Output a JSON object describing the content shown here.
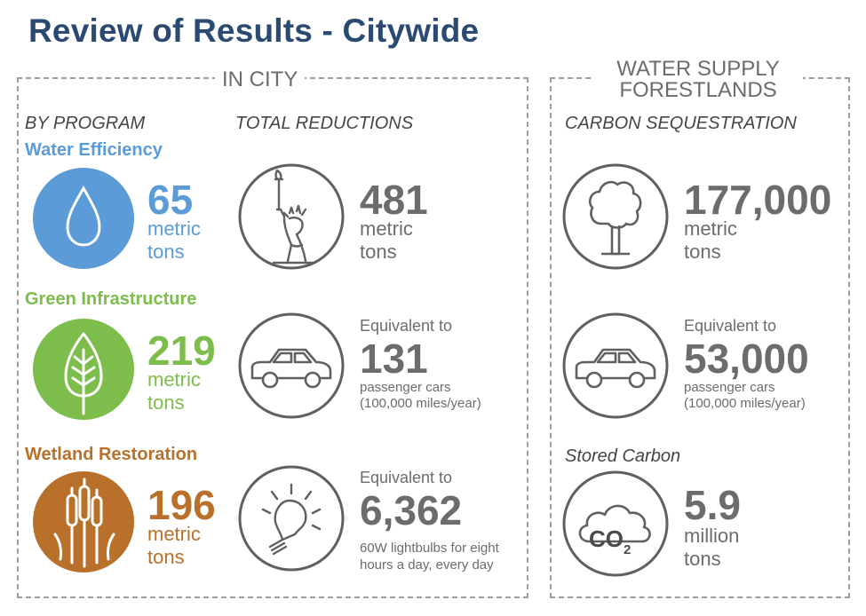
{
  "title": "Review of Results - Citywide",
  "in_city": {
    "label": "IN CITY",
    "by_program_heading": "BY PROGRAM",
    "total_reductions_heading": "TOTAL REDUCTIONS",
    "programs": [
      {
        "name": "Water Efficiency",
        "value": "65",
        "unit1": "metric",
        "unit2": "tons",
        "icon": "water-drop-icon",
        "color": "#5b9bd8"
      },
      {
        "name": "Green Infrastructure",
        "value": "219",
        "unit1": "metric",
        "unit2": "tons",
        "icon": "leaf-icon",
        "color": "#7cbd4b"
      },
      {
        "name": "Wetland Restoration",
        "value": "196",
        "unit1": "metric",
        "unit2": "tons",
        "icon": "cattail-icon",
        "color": "#b9702b"
      }
    ],
    "totals": {
      "reduction": {
        "value": "481",
        "unit1": "metric",
        "unit2": "tons",
        "icon": "statue-of-liberty-icon"
      },
      "cars": {
        "prefix": "Equivalent to",
        "value": "131",
        "line1": "passenger cars",
        "line2": "(100,000 miles/year)",
        "icon": "car-icon"
      },
      "bulbs": {
        "prefix": "Equivalent to",
        "value": "6,362",
        "line1": "60W lightbulbs for eight",
        "line2": "hours a day, every day",
        "icon": "lightbulb-icon"
      }
    }
  },
  "forestlands": {
    "label_line1": "WATER SUPPLY",
    "label_line2": "FORESTLANDS",
    "sequestration_heading": "CARBON SEQUESTRATION",
    "sequestration": {
      "value": "177,000",
      "unit1": "metric",
      "unit2": "tons",
      "icon": "tree-icon"
    },
    "cars": {
      "prefix": "Equivalent to",
      "value": "53,000",
      "line1": "passenger cars",
      "line2": "(100,000 miles/year)",
      "icon": "car-icon"
    },
    "stored_heading": "Stored Carbon",
    "stored": {
      "value": "5.9",
      "unit1": "million",
      "unit2": "tons",
      "icon": "co2-cloud-icon",
      "co2_text": "CO",
      "co2_sub": "2"
    }
  }
}
